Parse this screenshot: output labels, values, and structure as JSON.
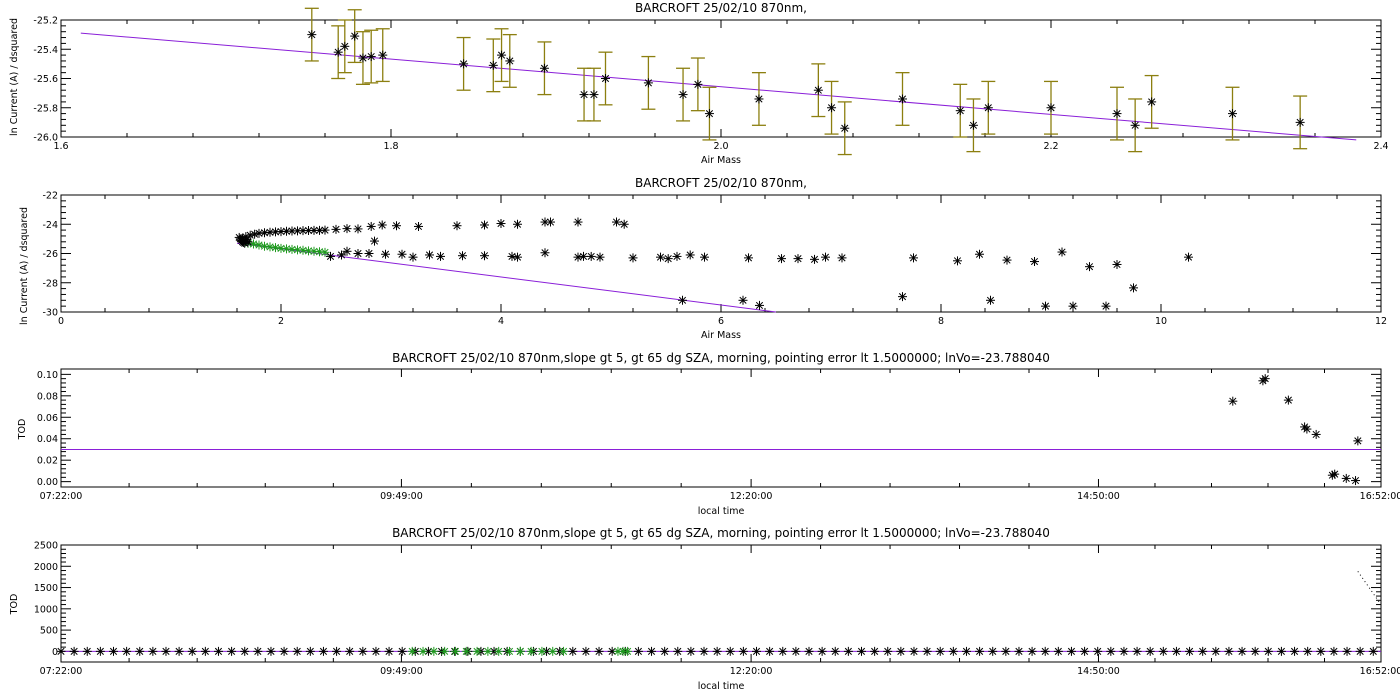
{
  "colors": {
    "fit": "#8a1fd8",
    "errorbar": "#8c7f10",
    "star": "#000000",
    "green": "#1f9a1f",
    "axis": "#000000"
  },
  "chart_data": [
    {
      "type": "scatter",
      "title": "BARCROFT 25/02/10 870nm,",
      "xlabel": "Air Mass",
      "ylabel": "ln Current (A) / dsquared",
      "xlim": [
        1.6,
        2.4
      ],
      "ylim": [
        -26.0,
        -25.2
      ],
      "xticks": [
        1.6,
        1.8,
        2.0,
        2.2,
        2.4
      ],
      "xtick_labels": [
        "1.6",
        "1.8",
        "2.0",
        "2.2",
        "2.4"
      ],
      "yticks": [
        -26.0,
        -25.8,
        -25.6,
        -25.4,
        -25.2
      ],
      "ytick_labels": [
        "-26.0",
        "-25.8",
        "-25.6",
        "-25.4",
        "-25.2"
      ],
      "fit_line": {
        "x": [
          1.612,
          2.385
        ],
        "y": [
          -25.29,
          -26.02
        ]
      },
      "series": [
        {
          "name": "points_with_error",
          "x": [
            1.752,
            1.768,
            1.772,
            1.778,
            1.783,
            1.788,
            1.795,
            1.844,
            1.862,
            1.867,
            1.872,
            1.893,
            1.917,
            1.923,
            1.93,
            1.956,
            1.977,
            1.986,
            1.993,
            2.023,
            2.059,
            2.067,
            2.075,
            2.11,
            2.145,
            2.153,
            2.162,
            2.2,
            2.24,
            2.251,
            2.261,
            2.31,
            2.351
          ],
          "y": [
            -25.3,
            -25.42,
            -25.38,
            -25.31,
            -25.46,
            -25.45,
            -25.44,
            -25.5,
            -25.51,
            -25.44,
            -25.48,
            -25.53,
            -25.71,
            -25.71,
            -25.6,
            -25.63,
            -25.71,
            -25.64,
            -25.84,
            -25.74,
            -25.68,
            -25.8,
            -25.94,
            -25.74,
            -25.82,
            -25.92,
            -25.8,
            -25.8,
            -25.84,
            -25.92,
            -25.76,
            -25.84,
            -25.9
          ],
          "err": [
            0.18,
            0.18,
            0.18,
            0.18,
            0.18,
            0.18,
            0.18,
            0.18,
            0.18,
            0.18,
            0.18,
            0.18,
            0.18,
            0.18,
            0.18,
            0.18,
            0.18,
            0.18,
            0.18,
            0.18,
            0.18,
            0.18,
            0.18,
            0.18,
            0.18,
            0.18,
            0.18,
            0.18,
            0.18,
            0.18,
            0.18,
            0.18,
            0.18
          ]
        }
      ]
    },
    {
      "type": "scatter",
      "title": "BARCROFT 25/02/10 870nm,",
      "xlabel": "Air Mass",
      "ylabel": "ln Current (A) / dsquared",
      "xlim": [
        0,
        12
      ],
      "ylim": [
        -30,
        -22
      ],
      "xticks": [
        0,
        2,
        4,
        6,
        8,
        10,
        12
      ],
      "xtick_labels": [
        "0",
        "2",
        "4",
        "6",
        "8",
        "10",
        "12"
      ],
      "yticks": [
        -30,
        -28,
        -26,
        -24,
        -22
      ],
      "ytick_labels": [
        "-30",
        "-28",
        "-26",
        "-24",
        "-22"
      ],
      "fit_line": {
        "x": [
          1.6,
          6.5
        ],
        "y": [
          -25.3,
          -30.0
        ]
      },
      "series": [
        {
          "name": "upper_branch",
          "color": "black",
          "x": [
            1.65,
            1.68,
            1.72,
            1.76,
            1.8,
            1.85,
            1.9,
            1.95,
            2.0,
            2.05,
            2.1,
            2.15,
            2.2,
            2.25,
            2.3,
            2.35,
            2.4,
            2.5,
            2.6,
            2.7,
            2.82,
            2.92,
            3.05,
            3.25,
            3.6,
            3.85,
            4.0,
            4.15,
            4.4,
            4.45,
            4.7,
            5.05,
            5.12
          ],
          "y": [
            -25.0,
            -24.85,
            -24.75,
            -24.68,
            -24.62,
            -24.58,
            -24.55,
            -24.52,
            -24.5,
            -24.48,
            -24.46,
            -24.45,
            -24.44,
            -24.43,
            -24.42,
            -24.42,
            -24.4,
            -24.35,
            -24.3,
            -24.32,
            -24.15,
            -24.05,
            -24.1,
            -24.15,
            -24.1,
            -24.05,
            -23.95,
            -24.0,
            -23.85,
            -23.85,
            -23.85,
            -23.85,
            -24.0
          ]
        },
        {
          "name": "lower_branch",
          "color": "black",
          "x": [
            2.45,
            2.55,
            2.6,
            2.7,
            2.8,
            2.85,
            2.95,
            3.1,
            3.2,
            3.35,
            3.45,
            3.65,
            3.85,
            4.1,
            4.15,
            4.4,
            4.7,
            4.75,
            4.82,
            4.9,
            5.2,
            5.45,
            5.52,
            5.6,
            5.72,
            5.85,
            6.25,
            6.55,
            6.7,
            6.85,
            6.95,
            7.1,
            7.75,
            8.15,
            8.35,
            8.6,
            8.85,
            9.1,
            9.35,
            9.6,
            10.25
          ],
          "y": [
            -26.2,
            -26.1,
            -25.85,
            -26.0,
            -26.0,
            -25.15,
            -26.05,
            -26.05,
            -26.25,
            -26.1,
            -26.2,
            -26.15,
            -26.15,
            -26.2,
            -26.25,
            -25.95,
            -26.25,
            -26.2,
            -26.2,
            -26.25,
            -26.3,
            -26.25,
            -26.35,
            -26.2,
            -26.1,
            -26.25,
            -26.3,
            -26.35,
            -26.35,
            -26.4,
            -26.25,
            -26.3,
            -26.3,
            -26.5,
            -26.05,
            -26.45,
            -26.55,
            -25.9,
            -26.9,
            -26.75,
            -26.25
          ]
        },
        {
          "name": "scattered_low",
          "color": "black",
          "x": [
            5.65,
            6.2,
            6.35,
            7.65,
            8.45,
            8.95,
            9.2,
            9.5,
            9.75
          ],
          "y": [
            -29.2,
            -29.2,
            -29.55,
            -28.95,
            -29.2,
            -29.6,
            -29.6,
            -29.6,
            -28.35
          ]
        },
        {
          "name": "green_branch",
          "color": "green",
          "x": [
            1.7,
            1.75,
            1.8,
            1.85,
            1.9,
            1.95,
            2.0,
            2.05,
            2.1,
            2.15,
            2.2,
            2.25,
            2.3,
            2.35,
            2.4
          ],
          "y": [
            -25.3,
            -25.35,
            -25.42,
            -25.5,
            -25.55,
            -25.6,
            -25.65,
            -25.68,
            -25.72,
            -25.75,
            -25.78,
            -25.82,
            -25.85,
            -25.88,
            -25.92
          ]
        },
        {
          "name": "cluster",
          "color": "black",
          "x": [
            1.62,
            1.63,
            1.64,
            1.65,
            1.66,
            1.67,
            1.68,
            1.69,
            1.7
          ],
          "y": [
            -24.9,
            -25.0,
            -25.1,
            -25.2,
            -25.25,
            -25.3,
            -25.15,
            -25.05,
            -25.2
          ]
        }
      ]
    },
    {
      "type": "scatter",
      "title": "BARCROFT 25/02/10 870nm,slope gt 5, gt 65 dg SZA, morning, pointing error lt 1.5000000; lnVo=-23.788040",
      "xlabel": "local time",
      "ylabel": "TOD",
      "xlim": [
        26520,
        60720
      ],
      "ylim": [
        -0.005,
        0.105
      ],
      "xticks": [
        26520,
        35340,
        44400,
        53400,
        60720
      ],
      "xtick_labels": [
        "07:22:00",
        "09:49:00",
        "12:20:00",
        "14:50:00",
        "16:52:00"
      ],
      "yticks": [
        0.0,
        0.02,
        0.04,
        0.06,
        0.08,
        0.1
      ],
      "ytick_labels": [
        "0.00",
        "0.02",
        "0.04",
        "0.06",
        "0.08",
        "0.10"
      ],
      "hline": 0.03,
      "series": [
        {
          "name": "tod_points",
          "x": [
            56880,
            57660,
            57720,
            58320,
            58740,
            58800,
            59040,
            59460,
            59520,
            59820,
            60060,
            60120
          ],
          "y": [
            0.075,
            0.094,
            0.096,
            0.076,
            0.051,
            0.049,
            0.044,
            0.006,
            0.007,
            0.003,
            0.001,
            0.038
          ]
        }
      ]
    },
    {
      "type": "scatter",
      "title": "BARCROFT 25/02/10 870nm,slope gt 5, gt 65 dg SZA, morning, pointing error lt 1.5000000; lnVo=-23.788040",
      "xlabel": "local time",
      "ylabel": "TOD",
      "xlim": [
        26520,
        60720
      ],
      "ylim": [
        -250,
        2500
      ],
      "xticks": [
        26520,
        35340,
        44400,
        53400,
        60720
      ],
      "xtick_labels": [
        "07:22:00",
        "09:49:00",
        "12:20:00",
        "14:50:00",
        "16:52:00"
      ],
      "yticks": [
        0,
        500,
        1000,
        1500,
        2000,
        2500
      ],
      "ytick_labels": [
        "0",
        "500",
        "1000",
        "1500",
        "2000",
        "2500"
      ],
      "hline": 0,
      "dotted_line": {
        "x": [
          60120,
          60680
        ],
        "y": [
          1880,
          1150
        ]
      },
      "series": [
        {
          "name": "tod_all",
          "color": "black",
          "start": 26520,
          "end": 60720,
          "step": 340,
          "y": 0
        },
        {
          "name": "tod_green_a",
          "color": "green",
          "x": [
            35620,
            35900,
            36180,
            36460,
            36740,
            37020,
            37300,
            37580,
            37860,
            38140,
            38420,
            38700,
            38980,
            39260,
            39540
          ],
          "y": [
            0,
            0,
            0,
            0,
            0,
            0,
            0,
            0,
            0,
            0,
            0,
            0,
            0,
            0,
            0
          ]
        },
        {
          "name": "tod_green_b",
          "color": "green",
          "x": [
            40950,
            41080,
            41200
          ],
          "y": [
            0,
            0,
            0
          ]
        }
      ]
    }
  ]
}
